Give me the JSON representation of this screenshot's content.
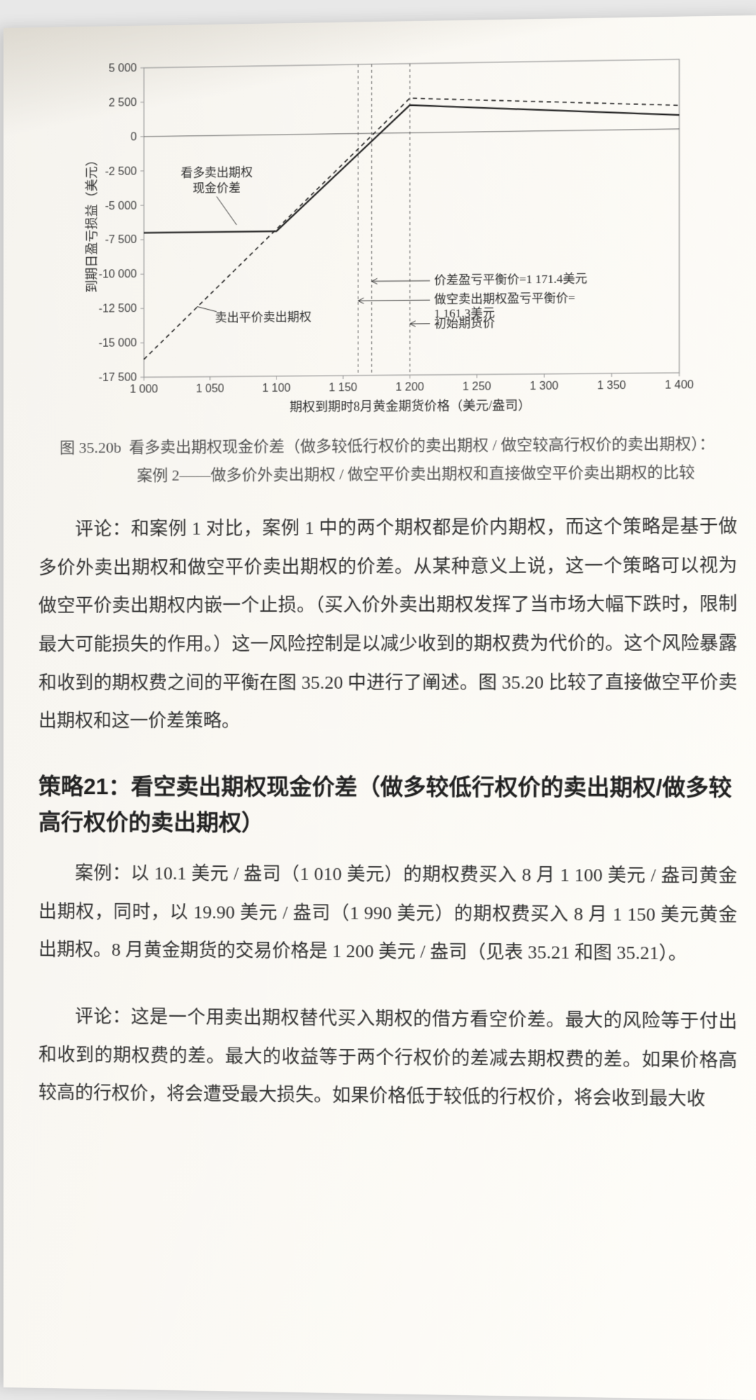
{
  "chart": {
    "type": "line",
    "xlim": [
      1000,
      1400
    ],
    "ylim": [
      -17500,
      5000
    ],
    "xtick_step": 50,
    "yticks": [
      5000,
      2500,
      0,
      -2500,
      -5000,
      -7500,
      -10000,
      -12500,
      -15000,
      -17500
    ],
    "xticks": [
      1000,
      1050,
      1100,
      1150,
      1200,
      1250,
      1300,
      1350,
      1400
    ],
    "xtick_labels": [
      "1 000",
      "1 050",
      "1 100",
      "1 150",
      "1 200",
      "1 250",
      "1 300",
      "1 350",
      "1 400"
    ],
    "ytick_labels": [
      "5 000",
      "2 500",
      "0",
      "-2 500",
      "-5 000",
      "-7 500",
      "-10 000",
      "-12 500",
      "-15 000",
      "-17 500"
    ],
    "xlabel": "期权到期时8月黄金期货价格（美元/盎司）",
    "ylabel": "到期日盈亏损益（美元）",
    "label_fontsize": 18,
    "tick_fontsize": 16,
    "background_color": "#f8f6f0",
    "grid_color": "#999999",
    "series": [
      {
        "name": "solid",
        "label": "看多卖出期权现金价差",
        "color": "#222222",
        "width": 2.2,
        "dash": "none",
        "points": [
          [
            1000,
            -7000
          ],
          [
            1100,
            -7000
          ],
          [
            1200,
            2000
          ],
          [
            1400,
            1000
          ]
        ]
      },
      {
        "name": "dashed",
        "label": "卖出平价卖出期权",
        "color": "#222222",
        "width": 1.6,
        "dash": "6,5",
        "points": [
          [
            1000,
            -16200
          ],
          [
            1200,
            2500
          ],
          [
            1400,
            1700
          ]
        ]
      }
    ],
    "annotations": {
      "spread_label": "看多卖出期权\n现金价差",
      "atm_put_label": "卖出平价卖出期权",
      "breakeven_spread": "价差盈亏平衡价=1 171.4美元",
      "breakeven_short": "做空卖出期权盈亏平衡价=\n1 161.3美元",
      "initial_futures": "初始期货价",
      "vlines": [
        1161.3,
        1171.4,
        1200
      ]
    },
    "annotation_fontsize": 17
  },
  "caption": {
    "prefix": "图 35.20b",
    "line1": "看多卖出期权现金价差（做多较低行权价的卖出期权 / 做空较高行权价的卖出期权）：",
    "line2": "案例 2——做多价外卖出期权 / 做空平价卖出期权和直接做空平价卖出期权的比较"
  },
  "paragraph1": "评论：和案例 1 对比，案例 1 中的两个期权都是价内期权，而这个策略是基于做多价外卖出期权和做空平价卖出期权的价差。从某种意义上说，这一个策略可以视为做空平价卖出期权内嵌一个止损。（买入价外卖出期权发挥了当市场大幅下跌时，限制最大可能损失的作用。）这一风险控制是以减少收到的期权费为代价的。这个风险暴露和收到的期权费之间的平衡在图 35.20 中进行了阐述。图 35.20 比较了直接做空平价卖出期权和这一价差策略。",
  "heading": "策略21：看空卖出期权现金价差（做多较低行权价的卖出期权/做多较高行权价的卖出期权）",
  "paragraph2": "案例：以 10.1 美元 / 盎司（1 010 美元）的期权费买入 8 月 1 100 美元 / 盎司黄金出期权，同时，以 19.90 美元 / 盎司（1 990 美元）的期权费买入 8 月 1 150 美元黄金出期权。8 月黄金期货的交易价格是 1 200 美元 / 盎司（见表 35.21 和图 35.21）。",
  "paragraph3": "评论：这是一个用卖出期权替代买入期权的借方看空价差。最大的风险等于付出和收到的期权费的差。最大的收益等于两个行权价的差减去期权费的差。如果价格高较高的行权价，将会遭受最大损失。如果价格低于较低的行权价，将会收到最大收"
}
